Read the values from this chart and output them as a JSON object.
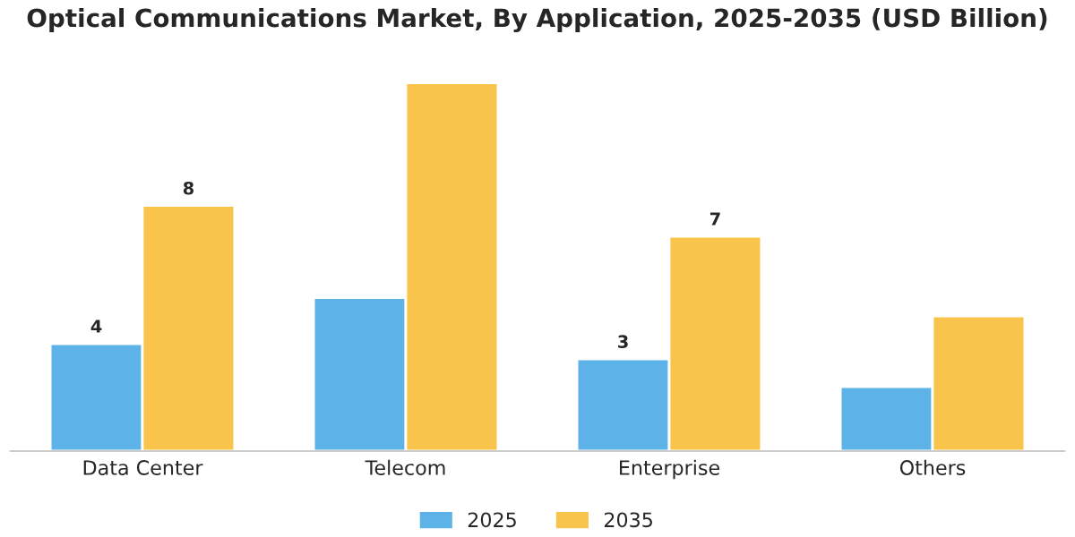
{
  "chart_data": {
    "type": "bar",
    "title": "Optical Communications Market, By Application, 2025-2035 (USD Billion)",
    "categories": [
      "Data Center",
      "Telecom",
      "Enterprise",
      "Others"
    ],
    "series": [
      {
        "name": "2025",
        "color": "#5db3e8",
        "values": [
          3.5,
          5.0,
          3.0,
          2.1
        ],
        "value_labels": [
          "4",
          null,
          "3",
          null
        ]
      },
      {
        "name": "2035",
        "color": "#f9c44c",
        "values": [
          8.0,
          12.0,
          7.0,
          4.4
        ],
        "value_labels": [
          "8",
          null,
          "7",
          null
        ]
      }
    ],
    "tick_labels": "x",
    "grid": false,
    "legend": "bottom"
  }
}
